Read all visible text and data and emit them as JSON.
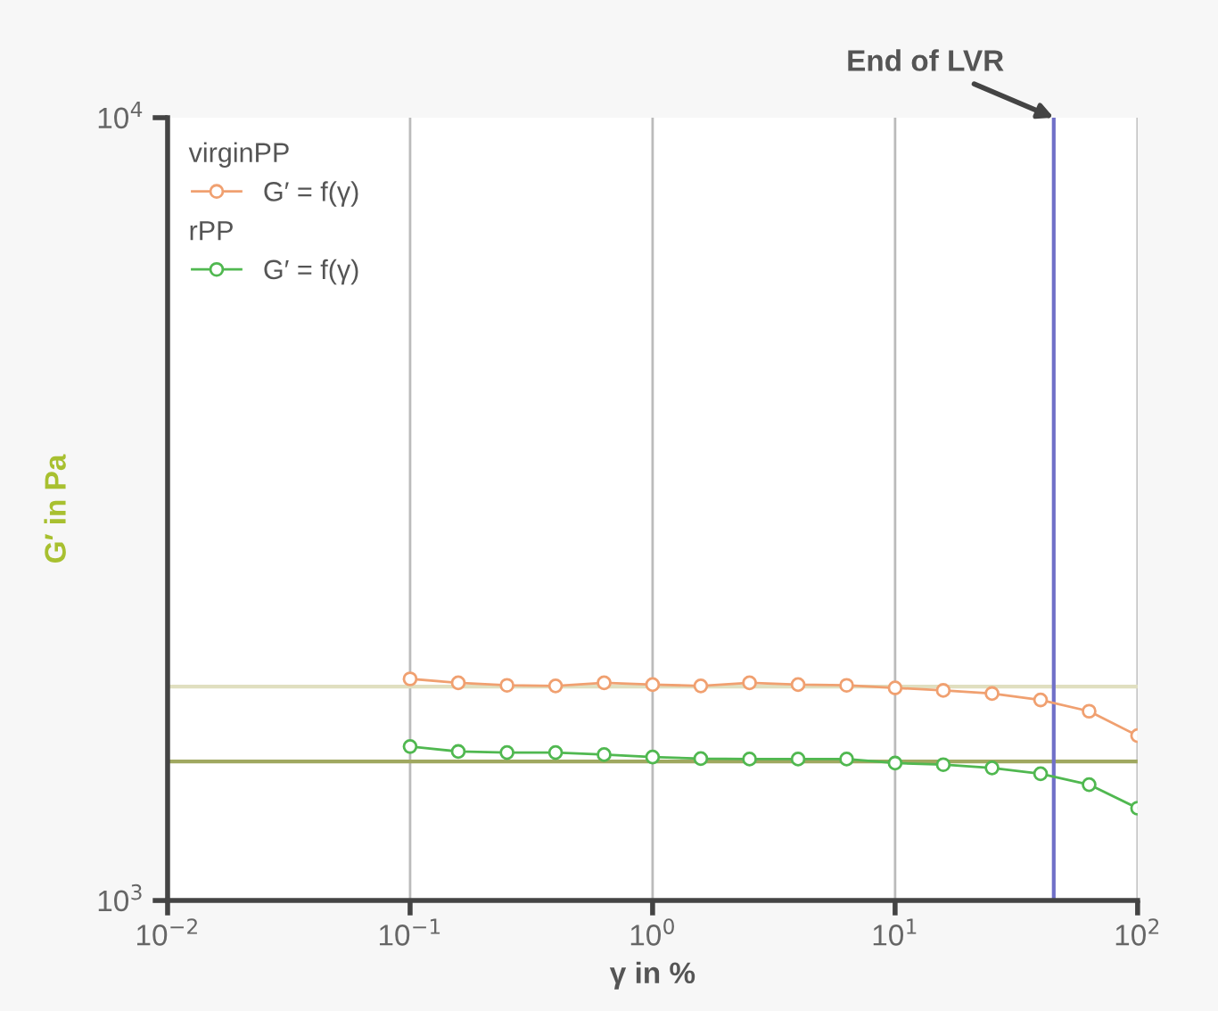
{
  "chart_data": {
    "type": "line",
    "xlabel": "γ in %",
    "ylabel": "G′ in Pa",
    "log": "xy",
    "grid": "x",
    "legend": "top left",
    "marker": "circle",
    "line_style": "solid",
    "xlim": [
      0.01,
      100
    ],
    "xticks": [
      {
        "value": 0.01,
        "label": "10$^{−2}$"
      },
      {
        "value": 0.1,
        "label": "10$^{−1}$"
      },
      {
        "value": 1,
        "label": "10$^{0}$"
      },
      {
        "value": 10,
        "label": "10$^{1}$"
      },
      {
        "value": 100,
        "label": "10$^{2}$"
      }
    ],
    "ylim": [
      1000,
      10000
    ],
    "yticks": [
      {
        "value": 1000,
        "label": "10$^{3}$"
      },
      {
        "value": 10000,
        "label": "10$^{4}$"
      }
    ],
    "x": [
      0.1,
      0.158,
      0.251,
      0.398,
      0.631,
      1,
      1.58,
      2.51,
      3.98,
      6.31,
      10,
      15.8,
      25.1,
      39.8,
      63.1,
      100
    ],
    "series": [
      {
        "name": "G′ = f(γ)",
        "color": "#f0a070",
        "values": [
          1919,
          1897,
          1883,
          1880,
          1897,
          1887,
          1880,
          1897,
          1887,
          1883,
          1869,
          1855,
          1838,
          1804,
          1745,
          1624
        ]
      },
      {
        "name": "G′ = f(γ)",
        "color": "#50b850",
        "values": [
          1573,
          1550,
          1545,
          1545,
          1536,
          1525,
          1518,
          1516,
          1516,
          1516,
          1498,
          1491,
          1477,
          1452,
          1406,
          1312
        ]
      }
    ],
    "ref_lines": [
      {
        "axis": "y",
        "value": 1876,
        "color": "#e0dfc0"
      },
      {
        "axis": "y",
        "value": 1505,
        "color": "#a0a860"
      },
      {
        "axis": "x",
        "value": 45.1,
        "color": "#7070c8"
      }
    ],
    "annotations": [
      "virginPP",
      "rPP",
      {
        "text": "End of LVR",
        "x": 45.1,
        "y": 10000
      }
    ]
  }
}
